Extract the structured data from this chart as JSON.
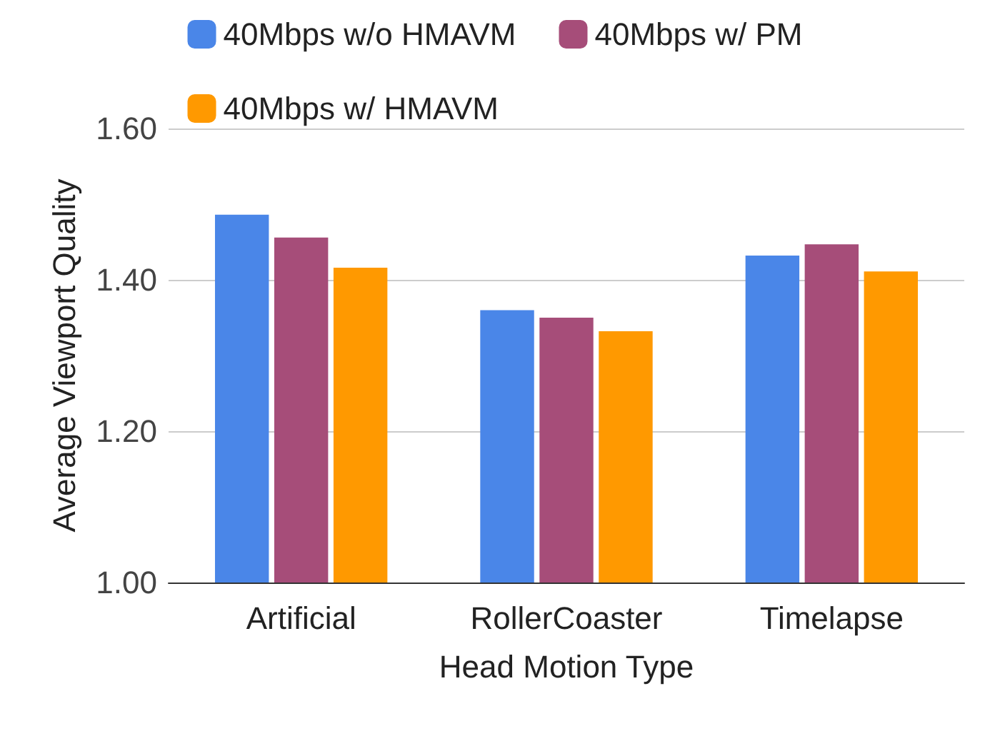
{
  "chart_data": {
    "type": "bar",
    "xlabel": "Head Motion Type",
    "ylabel": "Average Viewport Quality",
    "categories": [
      "Artificial",
      "RollerCoaster",
      "Timelapse"
    ],
    "series": [
      {
        "name": "40Mbps w/o HMAVM",
        "color": "#4a86e8",
        "values": [
          1.486,
          1.36,
          1.432
        ]
      },
      {
        "name": "40Mbps w/ PM",
        "color": "#a64d79",
        "values": [
          1.456,
          1.35,
          1.447
        ]
      },
      {
        "name": "40Mbps w/ HMAVM",
        "color": "#ff9900",
        "values": [
          1.416,
          1.332,
          1.411
        ]
      }
    ],
    "ylim": [
      1.0,
      1.6
    ],
    "yticks": [
      {
        "value": 1.0,
        "label": "1.00"
      },
      {
        "value": 1.2,
        "label": "1.20"
      },
      {
        "value": 1.4,
        "label": "1.40"
      },
      {
        "value": 1.6,
        "label": "1.60"
      }
    ],
    "grid": "y",
    "legend": "top"
  }
}
